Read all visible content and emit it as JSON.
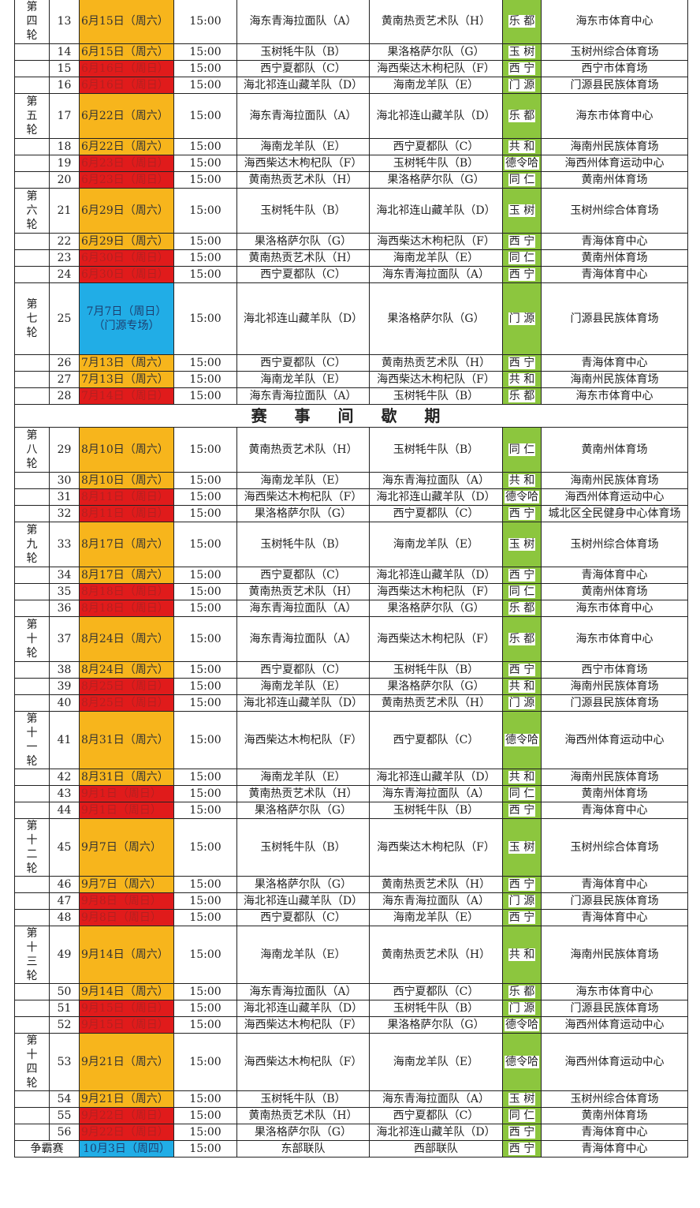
{
  "colors": {
    "saturday": "#f7b51c",
    "sunday": "#e01b1b",
    "special": "#21ade6",
    "city": "#8cc63e"
  },
  "break_label": "赛 事 间 歇 期",
  "rounds_before_break": [
    {
      "label": "第四轮",
      "matches": [
        [
          "13",
          "6月15日（周六）",
          "sat",
          "15:00",
          "海东青海拉面队（A）",
          "黄南热贡艺术队（H）",
          "乐 都",
          "海东市体育中心"
        ],
        [
          "14",
          "6月15日（周六）",
          "sat",
          "15:00",
          "玉树牦牛队（B）",
          "果洛格萨尔队（G）",
          "玉 树",
          "玉树州综合体育场"
        ],
        [
          "15",
          "6月16日（周日）",
          "sun",
          "15:00",
          "西宁夏都队（C）",
          "海西柴达木枸杞队（F）",
          "西 宁",
          "西宁市体育场"
        ],
        [
          "16",
          "6月16日（周日）",
          "sun",
          "15:00",
          "海北祁连山藏羊队（D）",
          "海南龙羊队（E）",
          "门 源",
          "门源县民族体育场"
        ]
      ]
    },
    {
      "label": "第五轮",
      "matches": [
        [
          "17",
          "6月22日（周六）",
          "sat",
          "15:00",
          "海东青海拉面队（A）",
          "海北祁连山藏羊队（D）",
          "乐 都",
          "海东市体育中心"
        ],
        [
          "18",
          "6月22日（周六）",
          "sat",
          "15:00",
          "海南龙羊队（E）",
          "西宁夏都队（C）",
          "共 和",
          "海南州民族体育场"
        ],
        [
          "19",
          "6月23日（周日）",
          "sun",
          "15:00",
          "海西柴达木枸杞队（F）",
          "玉树牦牛队（B）",
          "德令哈",
          "海西州体育运动中心"
        ],
        [
          "20",
          "6月23日（周日）",
          "sun",
          "15:00",
          "黄南热贡艺术队（H）",
          "果洛格萨尔队（G）",
          "同 仁",
          "黄南州体育场"
        ]
      ]
    },
    {
      "label": "第六轮",
      "matches": [
        [
          "21",
          "6月29日（周六）",
          "sat",
          "15:00",
          "玉树牦牛队（B）",
          "海北祁连山藏羊队（D）",
          "玉 树",
          "玉树州综合体育场"
        ],
        [
          "22",
          "6月29日（周六）",
          "sat",
          "15:00",
          "果洛格萨尔队（G）",
          "海西柴达木枸杞队（F）",
          "西 宁",
          "青海体育中心"
        ],
        [
          "23",
          "6月30日（周日）",
          "sun",
          "15:00",
          "黄南热贡艺术队（H）",
          "海南龙羊队（E）",
          "同 仁",
          "黄南州体育场"
        ],
        [
          "24",
          "6月30日（周日）",
          "sun",
          "15:00",
          "西宁夏都队（C）",
          "海东青海拉面队（A）",
          "西 宁",
          "青海体育中心"
        ]
      ]
    },
    {
      "label": "第七轮",
      "matches": [
        [
          "25",
          "7月7日（周日）\n（门源专场）",
          "spec",
          "15:00",
          "海北祁连山藏羊队（D）",
          "果洛格萨尔队（G）",
          "门 源",
          "门源县民族体育场"
        ],
        [
          "26",
          "7月13日（周六）",
          "sat",
          "15:00",
          "西宁夏都队（C）",
          "黄南热贡艺术队（H）",
          "西 宁",
          "青海体育中心"
        ],
        [
          "27",
          "7月13日（周六）",
          "sat",
          "15:00",
          "海南龙羊队（E）",
          "海西柴达木枸杞队（F）",
          "共 和",
          "海南州民族体育场"
        ],
        [
          "28",
          "7月14日（周日）",
          "sun",
          "15:00",
          "海东青海拉面队（A）",
          "玉树牦牛队（B）",
          "乐 都",
          "海东市体育中心"
        ]
      ]
    }
  ],
  "rounds_after_break": [
    {
      "label": "第八轮",
      "matches": [
        [
          "29",
          "8月10日（周六）",
          "sat",
          "15:00",
          "黄南热贡艺术队（H）",
          "玉树牦牛队（B）",
          "同 仁",
          "黄南州体育场"
        ],
        [
          "30",
          "8月10日（周六）",
          "sat",
          "15:00",
          "海南龙羊队（E）",
          "海东青海拉面队（A）",
          "共 和",
          "海南州民族体育场"
        ],
        [
          "31",
          "8月11日（周日）",
          "sun",
          "15:00",
          "海西柴达木枸杞队（F）",
          "海北祁连山藏羊队（D）",
          "德令哈",
          "海西州体育运动中心"
        ],
        [
          "32",
          "8月11日（周日）",
          "sun",
          "15:00",
          "果洛格萨尔队（G）",
          "西宁夏都队（C）",
          "西 宁",
          "城北区全民健身中心体育场"
        ]
      ]
    },
    {
      "label": "第九轮",
      "matches": [
        [
          "33",
          "8月17日（周六）",
          "sat",
          "15:00",
          "玉树牦牛队（B）",
          "海南龙羊队（E）",
          "玉 树",
          "玉树州综合体育场"
        ],
        [
          "34",
          "8月17日（周六）",
          "sat",
          "15:00",
          "西宁夏都队（C）",
          "海北祁连山藏羊队（D）",
          "西 宁",
          "青海体育中心"
        ],
        [
          "35",
          "8月18日（周日）",
          "sun",
          "15:00",
          "黄南热贡艺术队（H）",
          "海西柴达木枸杞队（F）",
          "同 仁",
          "黄南州体育场"
        ],
        [
          "36",
          "8月18日（周日）",
          "sun",
          "15:00",
          "海东青海拉面队（A）",
          "果洛格萨尔队（G）",
          "乐 都",
          "海东市体育中心"
        ]
      ]
    },
    {
      "label": "第十轮",
      "matches": [
        [
          "37",
          "8月24日（周六）",
          "sat",
          "15:00",
          "海东青海拉面队（A）",
          "海西柴达木枸杞队（F）",
          "乐 都",
          "海东市体育中心"
        ],
        [
          "38",
          "8月24日（周六）",
          "sat",
          "15:00",
          "西宁夏都队（C）",
          "玉树牦牛队（B）",
          "西 宁",
          "西宁市体育场"
        ],
        [
          "39",
          "8月25日（周日）",
          "sun",
          "15:00",
          "海南龙羊队（E）",
          "果洛格萨尔队（G）",
          "共 和",
          "海南州民族体育场"
        ],
        [
          "40",
          "8月25日（周日）",
          "sun",
          "15:00",
          "海北祁连山藏羊队（D）",
          "黄南热贡艺术队（H）",
          "门 源",
          "门源县民族体育场"
        ]
      ]
    },
    {
      "label": "第十一轮",
      "matches": [
        [
          "41",
          "8月31日（周六）",
          "sat",
          "15:00",
          "海西柴达木枸杞队（F）",
          "西宁夏都队（C）",
          "德令哈",
          "海西州体育运动中心"
        ],
        [
          "42",
          "8月31日（周六）",
          "sat",
          "15:00",
          "海南龙羊队（E）",
          "海北祁连山藏羊队（D）",
          "共 和",
          "海南州民族体育场"
        ],
        [
          "43",
          "9月1日（周日）",
          "sun",
          "15:00",
          "黄南热贡艺术队（H）",
          "海东青海拉面队（A）",
          "同 仁",
          "黄南州体育场"
        ],
        [
          "44",
          "9月1日（周日）",
          "sun",
          "15:00",
          "果洛格萨尔队（G）",
          "玉树牦牛队（B）",
          "西 宁",
          "青海体育中心"
        ]
      ]
    },
    {
      "label": "第十二轮",
      "matches": [
        [
          "45",
          "9月7日（周六）",
          "sat",
          "15:00",
          "玉树牦牛队（B）",
          "海西柴达木枸杞队（F）",
          "玉 树",
          "玉树州综合体育场"
        ],
        [
          "46",
          "9月7日（周六）",
          "sat",
          "15:00",
          "果洛格萨尔队（G）",
          "黄南热贡艺术队（H）",
          "西 宁",
          "青海体育中心"
        ],
        [
          "47",
          "9月8日（周日）",
          "sun",
          "15:00",
          "海北祁连山藏羊队（D）",
          "海东青海拉面队（A）",
          "门 源",
          "门源县民族体育场"
        ],
        [
          "48",
          "9月8日（周日）",
          "sun",
          "15:00",
          "西宁夏都队（C）",
          "海南龙羊队（E）",
          "西 宁",
          "青海体育中心"
        ]
      ]
    },
    {
      "label": "第十三轮",
      "matches": [
        [
          "49",
          "9月14日（周六）",
          "sat",
          "15:00",
          "海南龙羊队（E）",
          "黄南热贡艺术队（H）",
          "共 和",
          "海南州民族体育场"
        ],
        [
          "50",
          "9月14日（周六）",
          "sat",
          "15:00",
          "海东青海拉面队（A）",
          "西宁夏都队（C）",
          "乐 都",
          "海东市体育中心"
        ],
        [
          "51",
          "9月15日（周日）",
          "sun",
          "15:00",
          "海北祁连山藏羊队（D）",
          "玉树牦牛队（B）",
          "门 源",
          "门源县民族体育场"
        ],
        [
          "52",
          "9月15日（周日）",
          "sun",
          "15:00",
          "海西柴达木枸杞队（F）",
          "果洛格萨尔队（G）",
          "德令哈",
          "海西州体育运动中心"
        ]
      ]
    },
    {
      "label": "第十四轮",
      "matches": [
        [
          "53",
          "9月21日（周六）",
          "sat",
          "15:00",
          "海西柴达木枸杞队（F）",
          "海南龙羊队（E）",
          "德令哈",
          "海西州体育运动中心"
        ],
        [
          "54",
          "9月21日（周六）",
          "sat",
          "15:00",
          "玉树牦牛队（B）",
          "海东青海拉面队（A）",
          "玉 树",
          "玉树州综合体育场"
        ],
        [
          "55",
          "9月22日（周日）",
          "sun",
          "15:00",
          "黄南热贡艺术队（H）",
          "西宁夏都队（C）",
          "同 仁",
          "黄南州体育场"
        ],
        [
          "56",
          "9月22日（周日）",
          "sun",
          "15:00",
          "果洛格萨尔队（G）",
          "海北祁连山藏羊队（D）",
          "西 宁",
          "青海体育中心"
        ]
      ]
    }
  ],
  "final": {
    "label": "争霸赛",
    "date": "10月3日（周四）",
    "time": "15:00",
    "home": "东部联队",
    "away": "西部联队",
    "city": "西 宁",
    "venue": "青海体育中心"
  }
}
